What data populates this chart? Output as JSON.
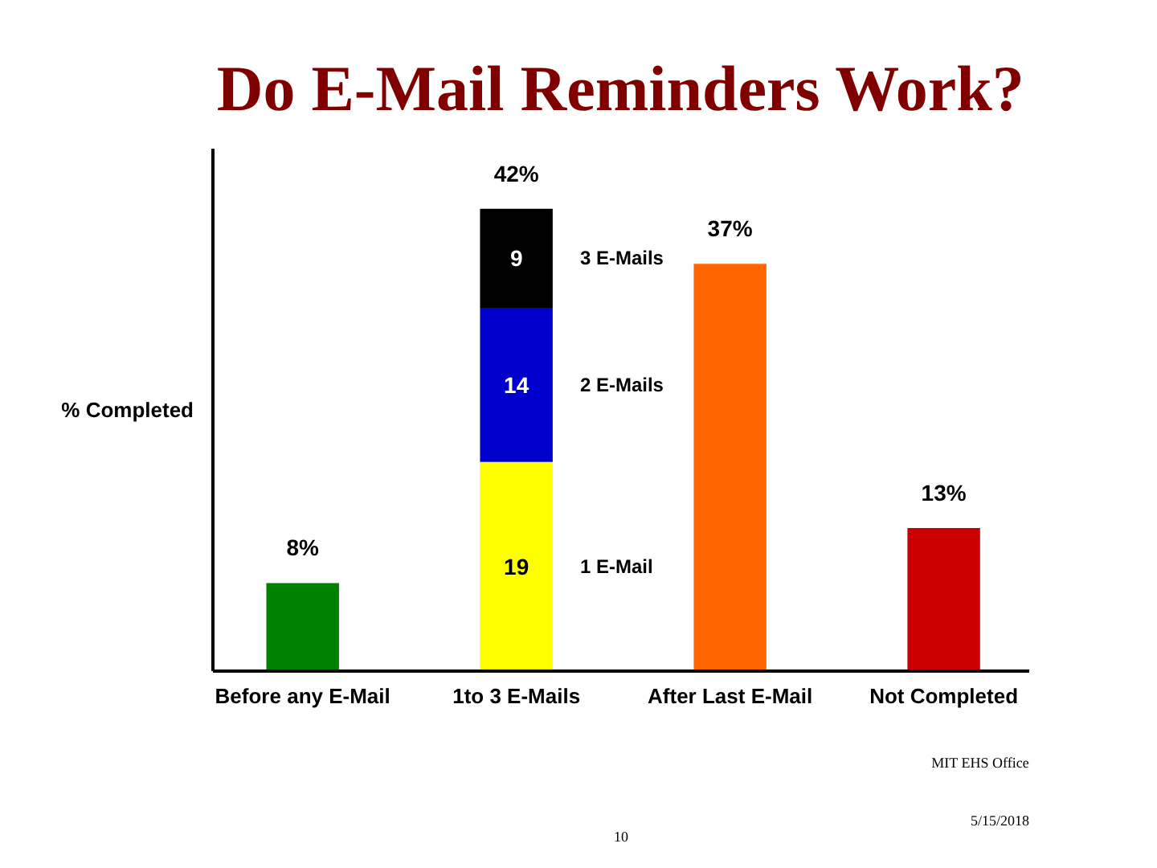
{
  "chart_data": {
    "type": "bar",
    "title": "Do E-Mail Reminders Work?",
    "ylabel": "% Completed",
    "categories": [
      "Before any E-Mail",
      "1to 3 E-Mails",
      "After Last E-Mail",
      "Not Completed"
    ],
    "stacked": true,
    "tick_labels": "x",
    "series": [
      {
        "colors": [
          "#008000",
          null,
          "#ff6600",
          "#cc0000"
        ],
        "values": [
          8,
          null,
          37,
          13
        ]
      },
      {
        "name": "1 E-Mail",
        "color": "#ffff00",
        "values": [
          null,
          19,
          null,
          null
        ],
        "value_labels": [
          null,
          "19",
          null,
          null
        ]
      },
      {
        "name": "2 E-Mails",
        "color": "#0000cc",
        "values": [
          null,
          14,
          null,
          null
        ],
        "value_labels": [
          null,
          "14",
          null,
          null
        ]
      },
      {
        "name": "3 E-Mails",
        "color": "#000000",
        "values": [
          null,
          9,
          null,
          null
        ],
        "value_labels": [
          null,
          "9",
          null,
          null
        ]
      }
    ],
    "totals": [
      "8%",
      "42%",
      "37%",
      "13%"
    ],
    "annotations": [
      "10",
      "MIT EHS Office",
      "5/15/2018"
    ]
  }
}
